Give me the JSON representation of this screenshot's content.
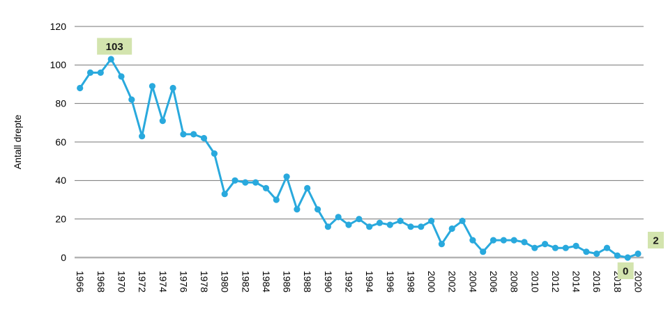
{
  "chart_data": {
    "type": "line",
    "title": "",
    "ylabel": "Antall drepte",
    "xlabel": "",
    "x": [
      1966,
      1967,
      1968,
      1969,
      1970,
      1971,
      1972,
      1973,
      1974,
      1975,
      1976,
      1977,
      1978,
      1979,
      1980,
      1981,
      1982,
      1983,
      1984,
      1985,
      1986,
      1987,
      1988,
      1989,
      1990,
      1991,
      1992,
      1993,
      1994,
      1995,
      1996,
      1997,
      1998,
      1999,
      2000,
      2001,
      2002,
      2003,
      2004,
      2005,
      2006,
      2007,
      2008,
      2009,
      2010,
      2011,
      2012,
      2013,
      2014,
      2015,
      2016,
      2017,
      2018,
      2019,
      2020
    ],
    "values": [
      88,
      96,
      96,
      103,
      94,
      82,
      63,
      89,
      71,
      88,
      64,
      64,
      62,
      54,
      33,
      40,
      39,
      39,
      36,
      30,
      42,
      25,
      36,
      25,
      16,
      21,
      17,
      20,
      16,
      18,
      17,
      19,
      16,
      16,
      19,
      7,
      15,
      19,
      9,
      3,
      9,
      9,
      9,
      8,
      5,
      7,
      5,
      5,
      6,
      3,
      2,
      5,
      1,
      0,
      2
    ],
    "ylim": [
      0,
      120
    ],
    "yticks": [
      0,
      20,
      40,
      60,
      80,
      100,
      120
    ],
    "xtick_years": [
      1966,
      1968,
      1970,
      1972,
      1974,
      1976,
      1978,
      1980,
      1982,
      1984,
      1986,
      1988,
      1990,
      1992,
      1994,
      1996,
      1998,
      2000,
      2002,
      2004,
      2006,
      2008,
      2010,
      2012,
      2014,
      2016,
      2018,
      2020
    ],
    "grid": true,
    "legend": "none",
    "annotations": [
      {
        "label": "103",
        "year": 1969,
        "value": 103,
        "placement": "above-point"
      },
      {
        "label": "0",
        "year": 2019,
        "value": 0,
        "placement": "below-axis"
      },
      {
        "label": "2",
        "year": 2020,
        "value": 2,
        "placement": "right-of-point"
      }
    ],
    "colors": {
      "line": "#29a9dd",
      "marker": "#29a9dd",
      "gridline": "#757575",
      "zero_axis": "#b3b3b3",
      "annotation_bg": "#d3e4ae",
      "annotation_text": "#1a1a1a",
      "tick_text": "#000000"
    }
  }
}
